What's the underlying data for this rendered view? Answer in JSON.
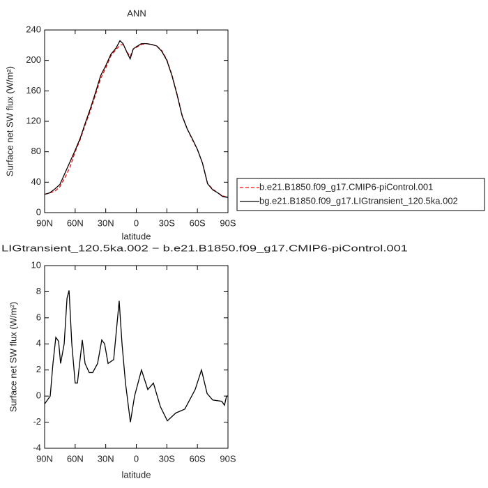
{
  "chart_data": [
    {
      "type": "line",
      "title": "ANN",
      "x_label": "latitude",
      "y_label": "Surface net SW flux (W/m²)",
      "xlim": [
        90,
        -90
      ],
      "ylim": [
        0,
        240
      ],
      "xticks": [
        {
          "value": 90,
          "label": "90N"
        },
        {
          "value": 60,
          "label": "60N"
        },
        {
          "value": 30,
          "label": "30N"
        },
        0,
        {
          "value": -30,
          "label": "30S"
        },
        {
          "value": -60,
          "label": "60S"
        },
        {
          "value": -90,
          "label": "90S"
        }
      ],
      "yticks": [
        0,
        40,
        80,
        120,
        160,
        200,
        240
      ],
      "legend": "right",
      "x": [
        90,
        85,
        80,
        75,
        70,
        65,
        60,
        55,
        50,
        45,
        40,
        35,
        30,
        25,
        20,
        16,
        13,
        9,
        6,
        3,
        0,
        -5,
        -10,
        -15,
        -20,
        -25,
        -30,
        -35,
        -40,
        -45,
        -50,
        -55,
        -60,
        -65,
        -70,
        -75,
        -80,
        -85,
        -90
      ],
      "series": [
        {
          "name": "b.e21.B1850.f09_g17.CMIP6-piControl.001",
          "color": "#ff0000",
          "dash": "dashed",
          "values": [
            24,
            26,
            28,
            34,
            46,
            60,
            80,
            96,
            116,
            134,
            155,
            176,
            190,
            206,
            214,
            220,
            221,
            211,
            205,
            215,
            217,
            221,
            222,
            221,
            219,
            213,
            201,
            181,
            156,
            128,
            110,
            96,
            83,
            65,
            38,
            31,
            26,
            22,
            20
          ]
        },
        {
          "name": "bg.e21.B1850.f09_g17.LIGtransient_120.5ka.002",
          "color": "#000000",
          "dash": "solid",
          "values": [
            24,
            26,
            31,
            37,
            52,
            67,
            82,
            98,
            118,
            137,
            158,
            180,
            193,
            208,
            216,
            226,
            222,
            210,
            202,
            215,
            218,
            222,
            222,
            221,
            219,
            212,
            200,
            180,
            155,
            127,
            110,
            97,
            83,
            65,
            38,
            30,
            26,
            21,
            20
          ]
        }
      ]
    },
    {
      "type": "line",
      "title": "LIGtransient_120.5ka.002 − b.e21.B1850.f09_g17.CMIP6-piControl.001",
      "x_label": "latitude",
      "y_label": "Surface net SW flux (W/m²)",
      "xlim": [
        90,
        -90
      ],
      "ylim": [
        -4,
        10
      ],
      "xticks": [
        {
          "value": 90,
          "label": "90N"
        },
        {
          "value": 60,
          "label": "60N"
        },
        {
          "value": 30,
          "label": "30N"
        },
        0,
        {
          "value": -30,
          "label": "30S"
        },
        {
          "value": -60,
          "label": "60S"
        },
        {
          "value": -90,
          "label": "90S"
        }
      ],
      "yticks": [
        -4,
        -2,
        0,
        2,
        4,
        6,
        8,
        10
      ],
      "color": "#000000",
      "x": [
        90,
        84.5,
        81.8,
        79,
        76.3,
        74.3,
        70.8,
        68,
        66,
        63.3,
        60,
        57.8,
        53,
        50.3,
        46.2,
        42.8,
        38,
        33.9,
        31.1,
        27.7,
        22.2,
        16.8,
        14,
        10.6,
        5.8,
        1.7,
        -5.1,
        -11.3,
        -16.8,
        -23.6,
        -30.5,
        -38.7,
        -47.6,
        -57.8,
        -64,
        -69.5,
        -75,
        -83.9,
        -86.6,
        -88.6,
        -90
      ],
      "values": [
        -0.6,
        0,
        2.5,
        4.5,
        4.2,
        2.5,
        4,
        7.5,
        8.1,
        4,
        1,
        1,
        4.3,
        2.5,
        1.8,
        1.8,
        2.5,
        4.3,
        4,
        2.5,
        2.8,
        7.3,
        4,
        1,
        -2,
        0,
        2,
        0.5,
        1,
        -0.8,
        -1.9,
        -1.3,
        -1,
        0.5,
        2,
        0.2,
        -0.3,
        -0.4,
        -0.7,
        0,
        0
      ]
    }
  ]
}
